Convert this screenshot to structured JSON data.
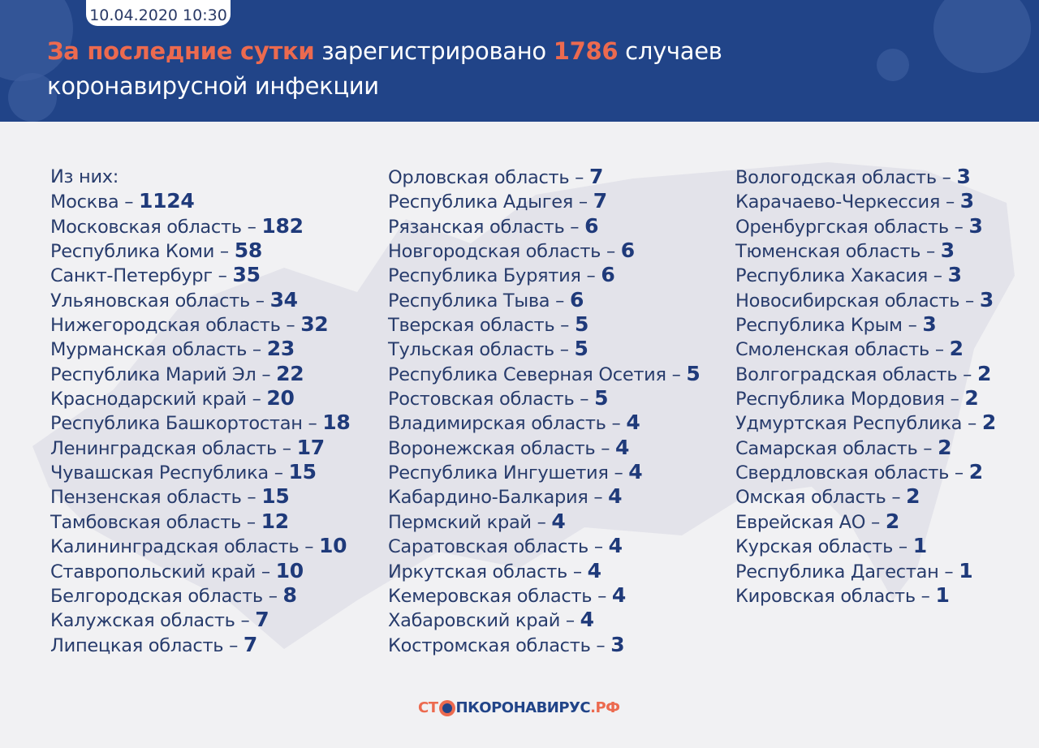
{
  "header": {
    "date": "10.04.2020 10:30",
    "title_highlight": "За последние сутки",
    "title_text1": " зарегистрировано ",
    "title_count": "1786",
    "title_text2": " случаев",
    "title_line2": "коронавирусной инфекции"
  },
  "intro": "Из них:",
  "colors": {
    "header_bg": "#214488",
    "accent": "#ec6a4f",
    "numbers": "#1f3a7a"
  },
  "columns": [
    [
      [
        "Москва",
        "1124"
      ],
      [
        "Московская область",
        "182"
      ],
      [
        "Республика Коми",
        "58"
      ],
      [
        "Санкт-Петербург",
        "35"
      ],
      [
        "Ульяновская область",
        "34"
      ],
      [
        "Нижегородская область",
        "32"
      ],
      [
        "Мурманская область",
        "23"
      ],
      [
        "Республика Марий Эл",
        "22"
      ],
      [
        "Краснодарский край",
        "20"
      ],
      [
        "Республика Башкортостан",
        "18"
      ],
      [
        "Ленинградская область",
        "17"
      ],
      [
        "Чувашская Республика",
        "15"
      ],
      [
        "Пензенская область",
        "15"
      ],
      [
        "Тамбовская область",
        "12"
      ],
      [
        "Калининградская область",
        "10"
      ],
      [
        "Ставропольский край",
        "10"
      ],
      [
        "Белгородская область",
        "8"
      ],
      [
        "Калужская область",
        "7"
      ],
      [
        "Липецкая область",
        "7"
      ]
    ],
    [
      [
        "Орловская область",
        "7"
      ],
      [
        "Республика Адыгея",
        "7"
      ],
      [
        "Рязанская область",
        "6"
      ],
      [
        "Новгородская область",
        "6"
      ],
      [
        "Республика Бурятия",
        "6"
      ],
      [
        "Республика Тыва",
        "6"
      ],
      [
        "Тверская область",
        "5"
      ],
      [
        "Тульская область",
        "5"
      ],
      [
        "Республика Северная Осетия",
        "5"
      ],
      [
        "Ростовская область",
        "5"
      ],
      [
        "Владимирская область",
        "4"
      ],
      [
        "Воронежская область",
        "4"
      ],
      [
        "Республика Ингушетия",
        "4"
      ],
      [
        "Кабардино-Балкария",
        "4"
      ],
      [
        "Пермский край",
        "4"
      ],
      [
        "Саратовская область",
        "4"
      ],
      [
        "Иркутская область",
        "4"
      ],
      [
        "Кемеровская область",
        "4"
      ],
      [
        "Хабаровский край",
        "4"
      ],
      [
        "Костромская область",
        "3"
      ]
    ],
    [
      [
        "Вологодская область",
        "3"
      ],
      [
        "Карачаево-Черкессия",
        "3"
      ],
      [
        "Оренбургская область",
        "3"
      ],
      [
        "Тюменская область",
        "3"
      ],
      [
        "Республика Хакасия",
        "3"
      ],
      [
        "Новосибирская область",
        "3"
      ],
      [
        "Республика Крым",
        "3"
      ],
      [
        "Смоленская область",
        "2"
      ],
      [
        "Волгоградская область",
        "2"
      ],
      [
        "Республика Мордовия",
        "2"
      ],
      [
        "Удмуртская Республика",
        "2"
      ],
      [
        "Самарская область",
        "2"
      ],
      [
        "Свердловская область",
        "2"
      ],
      [
        "Омская область",
        "2"
      ],
      [
        "Еврейская АО",
        "2"
      ],
      [
        "Курская область",
        "1"
      ],
      [
        "Республика Дагестан",
        "1"
      ],
      [
        "Кировская область",
        "1"
      ]
    ]
  ],
  "logo": {
    "part1": "СТ",
    "part2": "ПКОРОНАВИРУС",
    "part3": ".РФ"
  }
}
